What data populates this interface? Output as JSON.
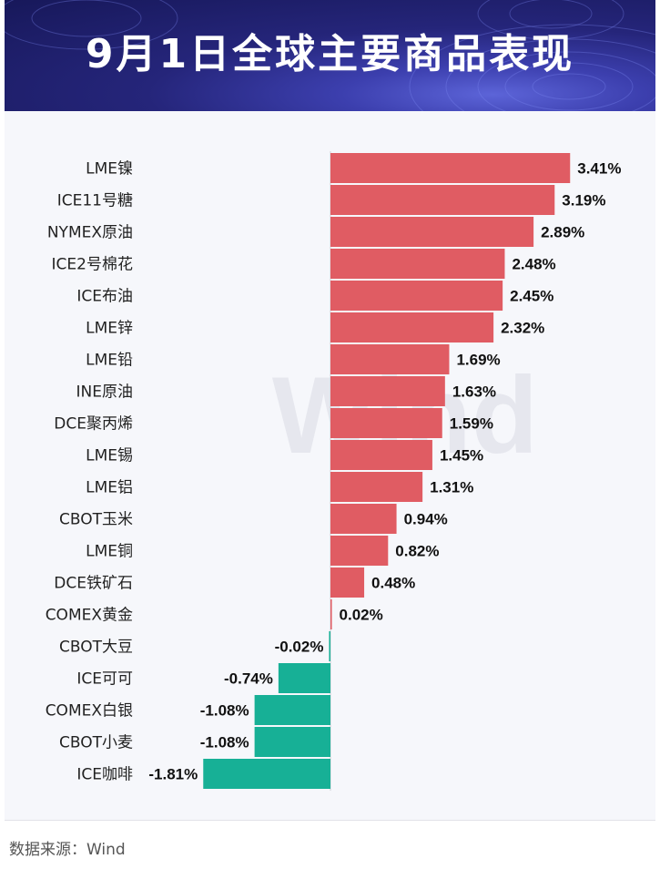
{
  "header": {
    "title": "9月1日全球主要商品表现"
  },
  "footer": {
    "source": "数据来源：Wind"
  },
  "watermark": "Wind",
  "colors": {
    "positive": "#e05c63",
    "negative": "#17b096",
    "banner": "#1f207a"
  },
  "chart_data": {
    "type": "bar",
    "orientation": "horizontal",
    "title": "9月1日全球主要商品表现",
    "unit": "%",
    "categories": [
      "LME镍",
      "ICE11号糖",
      "NYMEX原油",
      "ICE2号棉花",
      "ICE布油",
      "LME锌",
      "LME铅",
      "INE原油",
      "DCE聚丙烯",
      "LME锡",
      "LME铝",
      "CBOT玉米",
      "LME铜",
      "DCE铁矿石",
      "COMEX黄金",
      "CBOT大豆",
      "ICE可可",
      "COMEX白银",
      "CBOT小麦",
      "ICE咖啡"
    ],
    "values": [
      3.41,
      3.19,
      2.89,
      2.48,
      2.45,
      2.32,
      1.69,
      1.63,
      1.59,
      1.45,
      1.31,
      0.94,
      0.82,
      0.48,
      0.02,
      -0.02,
      -0.74,
      -1.08,
      -1.08,
      -1.81
    ],
    "labels": [
      "3.41%",
      "3.19%",
      "2.89%",
      "2.48%",
      "2.45%",
      "2.32%",
      "1.69%",
      "1.63%",
      "1.59%",
      "1.45%",
      "1.31%",
      "0.94%",
      "0.82%",
      "0.48%",
      "0.02%",
      "-0.02%",
      "-0.74%",
      "-1.08%",
      "-1.08%",
      "-1.81%"
    ],
    "xlim": [
      -1.81,
      3.41
    ],
    "grid": false,
    "legend": "none"
  }
}
